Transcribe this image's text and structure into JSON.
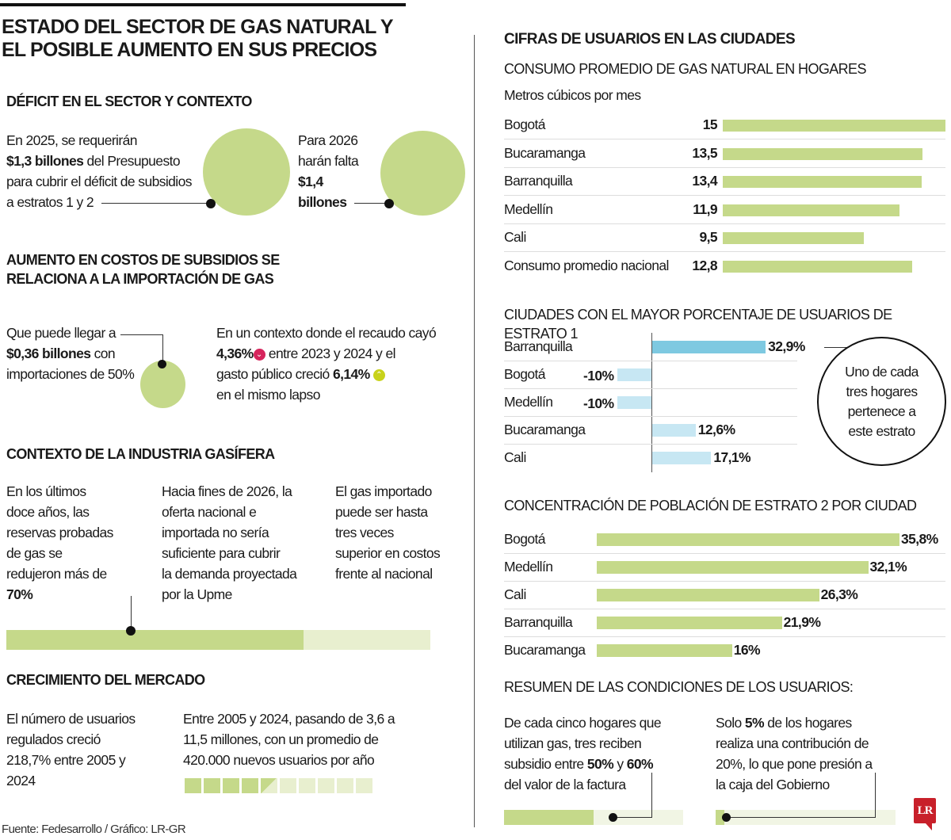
{
  "title": {
    "line1": "ESTADO DEL SECTOR DE GAS NATURAL Y",
    "line2": "EL POSIBLE AUMENTO EN SUS PRECIOS"
  },
  "colors": {
    "green": "#c5d98a",
    "light_green": "#e8efcf",
    "blue": "#7ec9e1",
    "light_blue": "#c7e7f3",
    "down_icon": "#d6245c",
    "up_icon": "#c8d21a",
    "logo": "#c8202a"
  },
  "deficit": {
    "heading": "DÉFICIT EN EL SECTOR Y CONTEXTO",
    "left": {
      "l1": "En 2025, se requerirán",
      "bold": "$1,3 billones",
      "l2": " del Presupuesto",
      "l3": "para cubrir el déficit de subsidios",
      "l4": "a estratos 1 y 2"
    },
    "right": {
      "l1": "Para 2026",
      "l2": "harán falta",
      "b1": "$1,4",
      "b2": "billones"
    }
  },
  "aumento": {
    "heading1": "AUMENTO EN COSTOS DE SUBSIDIOS SE",
    "heading2": "RELACIONA A LA IMPORTACIÓN DE GAS",
    "left": {
      "l1": "Que puede llegar a",
      "bold": "$0,36 billones",
      "l2": " con",
      "l3": "importaciones de 50%"
    },
    "right": {
      "l1": "En un contexto donde el recaudo cayó",
      "b1": "4,36%",
      "l2": " entre 2023 y 2024 y el",
      "l3": "gasto público creció ",
      "b2": "6,14%",
      "l4": "en el mismo lapso",
      "down_icon": "chevron-down-icon",
      "up_icon": "chevron-up-icon"
    }
  },
  "industria": {
    "heading": "CONTEXTO DE LA INDUSTRIA GASÍFERA",
    "col1": [
      "En los últimos",
      "doce años, las",
      "reservas probadas",
      "de gas se",
      "redujeron más de"
    ],
    "col1_bold": "70%",
    "col2": [
      "Hacia fines de 2026, la",
      "oferta nacional e",
      "importada no sería",
      "suficiente para cubrir",
      "la demanda proyectada",
      "por la Upme"
    ],
    "col3": [
      "El gas importado",
      "puede ser hasta",
      "tres veces",
      "superior en costos",
      "frente al nacional"
    ],
    "bar_percent": 70
  },
  "mercado": {
    "heading": "CRECIMIENTO DEL MERCADO",
    "left": [
      "El número de usuarios",
      "regulados creció",
      "218,7% entre 2005 y",
      "2024"
    ],
    "right": [
      "Entre 2005 y 2024, pasando de 3,6 a",
      "11,5 millones, con un promedio de",
      "420.000 nuevos usuarios por año"
    ],
    "squares_total": 10,
    "squares_filled": 4.5
  },
  "footer": "Fuente: Fedesarrollo / Gráfico: LR-GR",
  "right": {
    "heading": "CIFRAS DE USUARIOS EN LAS CIUDADES",
    "circle_note": [
      "Uno de cada",
      "tres hogares",
      "pertenece a",
      "este estrato"
    ],
    "resumen": {
      "heading": "RESUMEN DE LAS CONDICIONES DE LOS USUARIOS:",
      "left": {
        "l1": "De cada cinco hogares que",
        "l2": "utilizan gas, tres reciben",
        "l3": "subsidio entre ",
        "b1": "50%",
        "mid": " y ",
        "b2": "60%",
        "l4": "del valor de la factura",
        "bar_percent": 50
      },
      "right": {
        "l1": "Solo ",
        "b1": "5%",
        "l1b": " de los hogares",
        "l2": "realiza una contribución de",
        "l3": "20%, lo que pone presión a",
        "l4": "la caja del Gobierno",
        "bar_percent": 5
      }
    },
    "logo": "LR"
  },
  "chart_data": [
    {
      "type": "bar",
      "title": "CONSUMO PROMEDIO DE GAS NATURAL EN HOGARES",
      "subtitle": "Metros cúbicos por mes",
      "categories": [
        "Bogotá",
        "Bucaramanga",
        "Barranquilla",
        "Medellín",
        "Cali",
        "Consumo promedio nacional"
      ],
      "values": [
        15,
        13.5,
        13.4,
        11.9,
        9.5,
        12.8
      ],
      "labels": [
        "15",
        "13,5",
        "13,4",
        "11,9",
        "9,5",
        "12,8"
      ],
      "orientation": "horizontal"
    },
    {
      "type": "bar",
      "title": "CIUDADES CON EL MAYOR PORCENTAJE DE USUARIOS DE ESTRATO 1",
      "categories": [
        "Barranquilla",
        "Bogotá",
        "Medellín",
        "Bucaramanga",
        "Cali"
      ],
      "values": [
        32.9,
        -10,
        -10,
        12.6,
        17.1
      ],
      "labels": [
        "32,9%",
        "-10%",
        "-10%",
        "12,6%",
        "17,1%"
      ],
      "highlight": "Barranquilla",
      "orientation": "horizontal"
    },
    {
      "type": "bar",
      "title": "CONCENTRACIÓN DE POBLACIÓN DE ESTRATO 2 POR CIUDAD",
      "categories": [
        "Bogotá",
        "Medellín",
        "Cali",
        "Barranquilla",
        "Bucaramanga"
      ],
      "values": [
        35.8,
        32.1,
        26.3,
        21.9,
        16
      ],
      "labels": [
        "35,8%",
        "32,1%",
        "26,3%",
        "21,9%",
        "16%"
      ],
      "orientation": "horizontal"
    }
  ]
}
